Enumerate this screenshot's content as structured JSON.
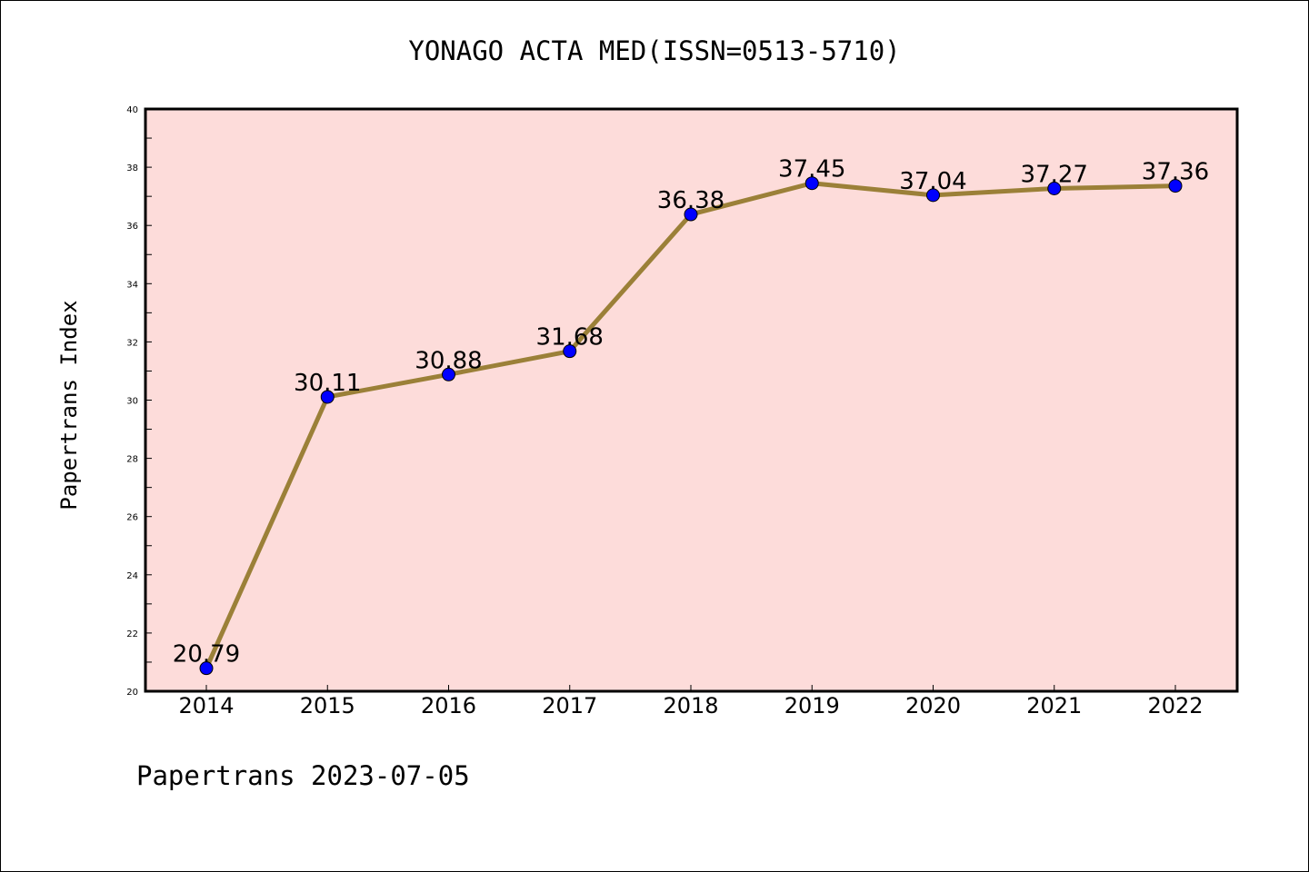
{
  "chart_data": {
    "type": "line",
    "title": "YONAGO ACTA MED(ISSN=0513-5710)",
    "xlabel": "",
    "ylabel": "Papertrans Index",
    "footer": "Papertrans 2023-07-05",
    "x": [
      "2014",
      "2015",
      "2016",
      "2017",
      "2018",
      "2019",
      "2020",
      "2021",
      "2022"
    ],
    "series": [
      {
        "values": [
          20.79,
          30.11,
          30.88,
          31.68,
          36.38,
          37.45,
          37.04,
          37.27,
          37.36
        ],
        "labels": [
          "20.79",
          "30.11",
          "30.88",
          "31.68",
          "36.38",
          "37.45",
          "37.04",
          "37.27",
          "37.36"
        ]
      }
    ],
    "ylim": [
      20,
      40
    ],
    "yticks": [
      "20",
      "22",
      "24",
      "26",
      "28",
      "30",
      "32",
      "34",
      "36",
      "38",
      "40"
    ],
    "grid": false,
    "colors": {
      "plot_background": "#fddcda",
      "line": "#9b8038",
      "marker": "#0000ff",
      "marker_edge": "#000000",
      "axis": "#000000"
    }
  }
}
